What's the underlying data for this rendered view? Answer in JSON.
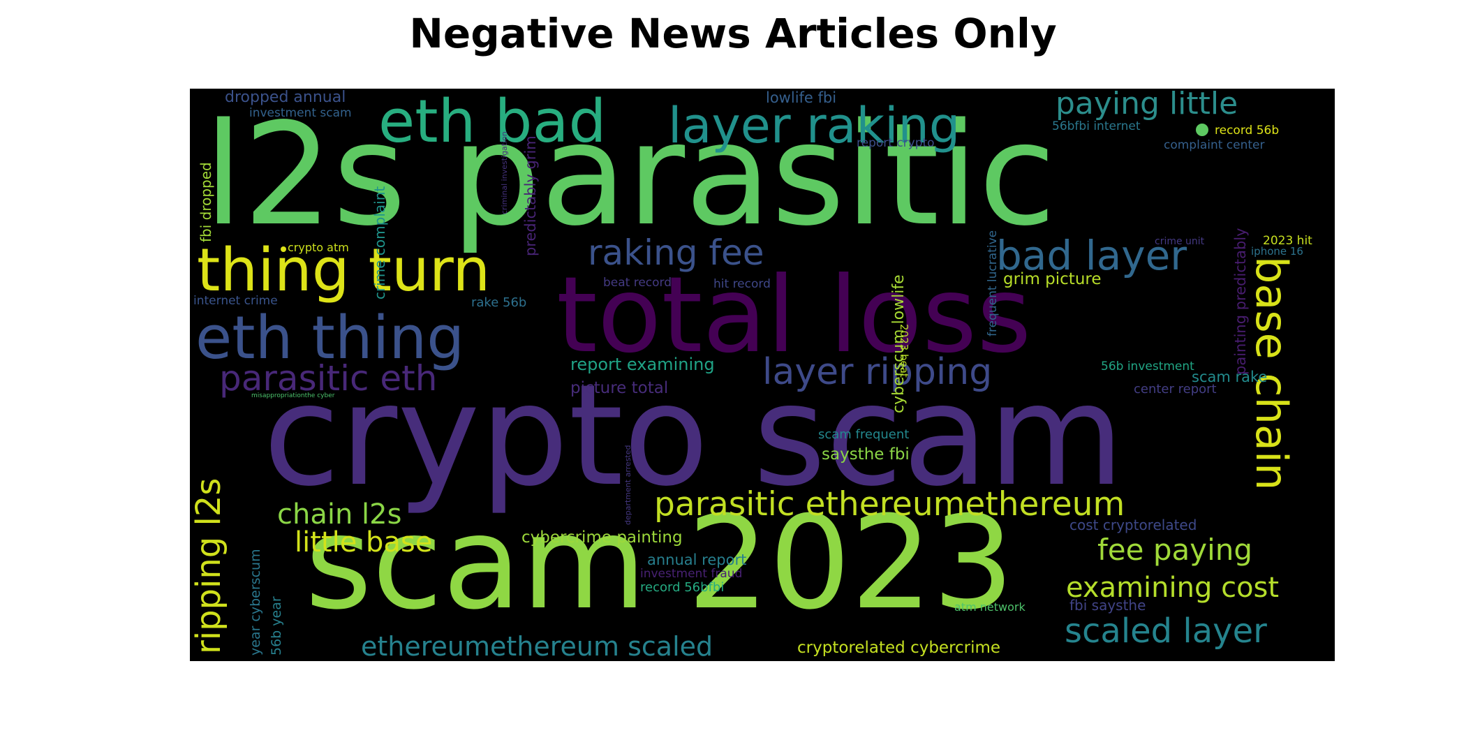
{
  "title": "Negative News Articles Only",
  "palette": {
    "purple": "#440154",
    "indigo": "#472d7b",
    "blue": "#3b528b",
    "steel": "#2c728e",
    "teal": "#21918c",
    "sea": "#28ae80",
    "green": "#5ec962",
    "lime": "#addc30",
    "yellow": "#e3e418"
  },
  "words": [
    {
      "text": "l2s parasitic",
      "color": "#5ec962",
      "weight": 1.0
    },
    {
      "text": "crypto scam",
      "color": "#472d7b",
      "weight": 0.98
    },
    {
      "text": "scam 2023",
      "color": "#8fd744",
      "weight": 0.9
    },
    {
      "text": "total loss",
      "color": "#440154",
      "weight": 0.75
    },
    {
      "text": "eth bad",
      "color": "#28ae80",
      "weight": 0.5
    },
    {
      "text": "layer raking",
      "color": "#21918c",
      "weight": 0.42
    },
    {
      "text": "thing turn",
      "color": "#dde318",
      "weight": 0.5
    },
    {
      "text": "eth thing",
      "color": "#3b528b",
      "weight": 0.5
    },
    {
      "text": "base chain",
      "color": "#d8e219",
      "weight": 0.4
    },
    {
      "text": "bad layer",
      "color": "#31688e",
      "weight": 0.35
    },
    {
      "text": "raking fee",
      "color": "#3b528b",
      "weight": 0.3
    },
    {
      "text": "paying little",
      "color": "#2c8e8c",
      "weight": 0.28
    },
    {
      "text": "layer ripping",
      "color": "#3e4a89",
      "weight": 0.3
    },
    {
      "text": "parasitic eth",
      "color": "#482878",
      "weight": 0.3
    },
    {
      "text": "ripping l2s",
      "color": "#d0e11c",
      "weight": 0.28
    },
    {
      "text": "parasitic ethereumethereum",
      "color": "#c2df23",
      "weight": 0.28
    },
    {
      "text": "scaled layer",
      "color": "#25848e",
      "weight": 0.28
    },
    {
      "text": "fee paying",
      "color": "#a0da39",
      "weight": 0.25
    },
    {
      "text": "examining cost",
      "color": "#b5de2b",
      "weight": 0.23
    },
    {
      "text": "ethereumethereum scaled",
      "color": "#26828e",
      "weight": 0.23
    },
    {
      "text": "chain l2s",
      "color": "#8bd646",
      "weight": 0.23
    },
    {
      "text": "little base",
      "color": "#d2e21b",
      "weight": 0.23
    },
    {
      "text": "cyberscum lowlife",
      "color": "#a8db34",
      "weight": 0.14
    },
    {
      "text": "report examining",
      "color": "#20a386",
      "weight": 0.15
    },
    {
      "text": "picture total",
      "color": "#472c7a",
      "weight": 0.14
    },
    {
      "text": "grim picture",
      "color": "#b8de29",
      "weight": 0.14
    },
    {
      "text": "cybercrime painting",
      "color": "#9dd93b",
      "weight": 0.14
    },
    {
      "text": "cryptorelated cybercrime",
      "color": "#c5e021",
      "weight": 0.14
    },
    {
      "text": "annual report",
      "color": "#277f8e",
      "weight": 0.13
    },
    {
      "text": "saysthe fbi",
      "color": "#8bd646",
      "weight": 0.14
    },
    {
      "text": "scam rake",
      "color": "#228b8d",
      "weight": 0.13
    },
    {
      "text": "dropped annual",
      "color": "#3b528b",
      "weight": 0.13
    },
    {
      "text": "lowlife fbi",
      "color": "#355f8d",
      "weight": 0.12
    },
    {
      "text": "predictably grim",
      "color": "#482475",
      "weight": 0.12
    },
    {
      "text": "painting predictably",
      "color": "#481d6f",
      "weight": 0.12
    },
    {
      "text": "fbi dropped",
      "color": "#a2da37",
      "weight": 0.12
    },
    {
      "text": "crime complaint",
      "color": "#1f948c",
      "weight": 0.12
    },
    {
      "text": "year cyberscum",
      "color": "#2a778e",
      "weight": 0.12
    },
    {
      "text": "56b year",
      "color": "#27808e",
      "weight": 0.12
    },
    {
      "text": "frequent lucrative",
      "color": "#31678e",
      "weight": 0.1
    },
    {
      "text": "cost cryptorelated",
      "color": "#3e4989",
      "weight": 0.11
    },
    {
      "text": "fbi saysthe",
      "color": "#414487",
      "weight": 0.11
    },
    {
      "text": "center report",
      "color": "#433e85",
      "weight": 0.11
    },
    {
      "text": "rake 56b",
      "color": "#2d708e",
      "weight": 0.1
    },
    {
      "text": "record 56bfbi",
      "color": "#25ab82",
      "weight": 0.1
    },
    {
      "text": "investment fraud",
      "color": "#482173",
      "weight": 0.1
    },
    {
      "text": "scam frequent",
      "color": "#23888e",
      "weight": 0.1
    },
    {
      "text": "56b investment",
      "color": "#21a685",
      "weight": 0.09
    },
    {
      "text": "investment scam",
      "color": "#33628d",
      "weight": 0.09
    },
    {
      "text": "complaint center",
      "color": "#35608d",
      "weight": 0.09
    },
    {
      "text": "56bfbi internet",
      "color": "#2a788e",
      "weight": 0.09
    },
    {
      "text": "record 56b",
      "color": "#dde318",
      "weight": 0.09
    },
    {
      "text": "report crypto",
      "color": "#3d4e8a",
      "weight": 0.09
    },
    {
      "text": "internet crime",
      "color": "#3a548c",
      "weight": 0.09
    },
    {
      "text": "beat record",
      "color": "#443a83",
      "weight": 0.09
    },
    {
      "text": "hit record",
      "color": "#3f4788",
      "weight": 0.09
    },
    {
      "text": "2023 hit",
      "color": "#c8e020",
      "weight": 0.09
    },
    {
      "text": "iphone 16",
      "color": "#2c738e",
      "weight": 0.08
    },
    {
      "text": "crime unit",
      "color": "#443983",
      "weight": 0.07
    },
    {
      "text": "crypto atm",
      "color": "#cde11d",
      "weight": 0.08
    },
    {
      "text": "atm network",
      "color": "#4ec36b",
      "weight": 0.08
    },
    {
      "text": "2023 beat",
      "color": "#bade28",
      "weight": 0.08
    },
    {
      "text": "criminal investigation",
      "color": "#46327e",
      "weight": 0.06
    },
    {
      "text": "department arrested",
      "color": "#453882",
      "weight": 0.06
    },
    {
      "text": "misappropriationthe cyber",
      "color": "#4cc26c",
      "weight": 0.04
    }
  ]
}
